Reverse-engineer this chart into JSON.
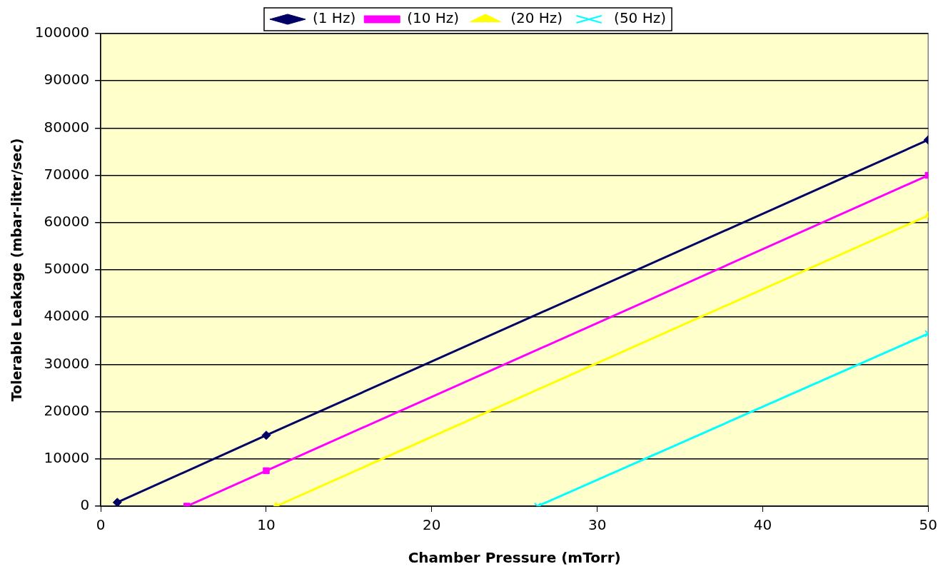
{
  "chart_data": {
    "type": "line",
    "xlabel": "Chamber Pressure (mTorr)",
    "ylabel": "Tolerable Leakage (mbar-liter/sec)",
    "xlim": [
      0,
      50
    ],
    "xticks": [
      0,
      10,
      20,
      30,
      40,
      50
    ],
    "ylim": [
      0,
      100000
    ],
    "yticks": [
      0,
      10000,
      20000,
      30000,
      40000,
      50000,
      60000,
      70000,
      80000,
      90000,
      100000
    ],
    "grid": "y",
    "legend": "top",
    "line_style": "solid",
    "series": [
      {
        "name": "(1 Hz)",
        "color": "#000066",
        "marker": "diamond",
        "x": [
          1,
          10,
          50
        ],
        "values": [
          800,
          15000,
          77500
        ]
      },
      {
        "name": "(10 Hz)",
        "color": "#ff00ff",
        "marker": "square",
        "x": [
          5.2,
          10,
          50
        ],
        "values": [
          0,
          7500,
          70000
        ]
      },
      {
        "name": "(20 Hz)",
        "color": "#ffff00",
        "marker": "triangle",
        "x": [
          10.6,
          50
        ],
        "values": [
          0,
          61500
        ]
      },
      {
        "name": "(50 Hz)",
        "color": "#00ffff",
        "marker": "cross",
        "x": [
          26.4,
          50
        ],
        "values": [
          0,
          36500
        ]
      }
    ]
  }
}
